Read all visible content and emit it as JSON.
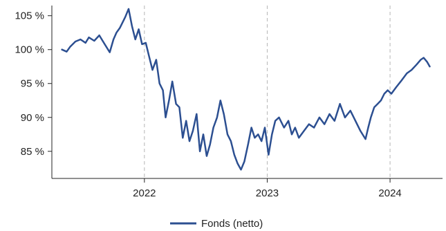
{
  "chart_data": {
    "type": "line",
    "title": "",
    "xlabel": "",
    "ylabel": "",
    "ylim": [
      81,
      106.5
    ],
    "xlim": [
      "2021-04-01",
      "2024-06-05"
    ],
    "grid": {
      "x": "dashed-vertical",
      "y": false
    },
    "legend": {
      "position": "bottom",
      "entries": [
        "Fonds (netto)"
      ]
    },
    "y_ticks": [
      {
        "value": 85,
        "label": "85 %"
      },
      {
        "value": 90,
        "label": "90 %"
      },
      {
        "value": 95,
        "label": "95 %"
      },
      {
        "value": 100,
        "label": "100 %"
      },
      {
        "value": 105,
        "label": "105 %"
      }
    ],
    "x_ticks": [
      {
        "value": "2022-01-01",
        "label": "2022"
      },
      {
        "value": "2023-01-01",
        "label": "2023"
      },
      {
        "value": "2024-01-01",
        "label": "2024"
      }
    ],
    "series": [
      {
        "name": "Fonds (netto)",
        "color": "#2c4f91",
        "x": [
          "2021-05-01",
          "2021-05-15",
          "2021-05-25",
          "2021-06-10",
          "2021-06-25",
          "2021-07-10",
          "2021-07-20",
          "2021-08-05",
          "2021-08-20",
          "2021-09-05",
          "2021-09-20",
          "2021-10-01",
          "2021-10-10",
          "2021-10-20",
          "2021-11-05",
          "2021-11-15",
          "2021-11-25",
          "2021-12-05",
          "2021-12-15",
          "2021-12-25",
          "2022-01-05",
          "2022-01-15",
          "2022-01-25",
          "2022-02-05",
          "2022-02-15",
          "2022-02-25",
          "2022-03-05",
          "2022-03-15",
          "2022-03-25",
          "2022-04-05",
          "2022-04-15",
          "2022-04-25",
          "2022-05-05",
          "2022-05-15",
          "2022-05-25",
          "2022-06-05",
          "2022-06-15",
          "2022-06-25",
          "2022-07-05",
          "2022-07-15",
          "2022-07-25",
          "2022-08-05",
          "2022-08-15",
          "2022-08-25",
          "2022-09-05",
          "2022-09-15",
          "2022-09-25",
          "2022-10-05",
          "2022-10-15",
          "2022-10-25",
          "2022-11-05",
          "2022-11-15",
          "2022-11-25",
          "2022-12-05",
          "2022-12-15",
          "2022-12-25",
          "2023-01-05",
          "2023-01-15",
          "2023-01-25",
          "2023-02-05",
          "2023-02-20",
          "2023-03-05",
          "2023-03-15",
          "2023-03-25",
          "2023-04-05",
          "2023-04-20",
          "2023-05-05",
          "2023-05-20",
          "2023-06-05",
          "2023-06-20",
          "2023-07-05",
          "2023-07-20",
          "2023-08-05",
          "2023-08-20",
          "2023-09-05",
          "2023-09-20",
          "2023-10-05",
          "2023-10-20",
          "2023-10-28",
          "2023-11-05",
          "2023-11-15",
          "2023-11-25",
          "2023-12-05",
          "2023-12-15",
          "2023-12-25",
          "2024-01-05",
          "2024-01-20",
          "2024-02-05",
          "2024-02-20",
          "2024-03-05",
          "2024-03-20",
          "2024-04-01",
          "2024-04-10",
          "2024-04-20",
          "2024-04-28"
        ],
        "values": [
          100.0,
          99.7,
          100.4,
          101.2,
          101.5,
          101.0,
          101.8,
          101.3,
          102.1,
          100.8,
          99.6,
          101.5,
          102.5,
          103.2,
          104.8,
          106.0,
          103.5,
          101.5,
          103.0,
          100.8,
          101.0,
          99.0,
          97.0,
          98.5,
          95.0,
          94.0,
          90.0,
          92.5,
          95.3,
          92.0,
          91.5,
          87.0,
          89.5,
          86.5,
          88.0,
          90.5,
          85.0,
          87.5,
          84.3,
          86.0,
          88.5,
          90.0,
          92.5,
          90.5,
          87.5,
          86.5,
          84.5,
          83.2,
          82.3,
          83.5,
          86.0,
          88.5,
          87.0,
          87.5,
          86.5,
          88.5,
          84.5,
          87.5,
          89.5,
          90.0,
          88.5,
          89.5,
          87.5,
          88.5,
          87.0,
          88.0,
          89.0,
          88.5,
          90.0,
          89.0,
          90.5,
          89.5,
          92.0,
          90.0,
          91.0,
          89.5,
          88.0,
          86.8,
          88.5,
          90.0,
          91.5,
          92.0,
          92.5,
          93.5,
          94.0,
          93.5,
          94.5,
          95.5,
          96.5,
          97.0,
          97.8,
          98.5,
          98.8,
          98.2,
          97.5
        ]
      }
    ]
  }
}
